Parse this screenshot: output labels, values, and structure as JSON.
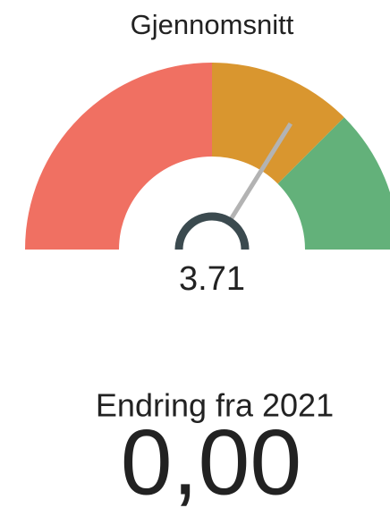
{
  "chart_data": {
    "type": "gauge",
    "title": "Gjennomsnitt",
    "value": 3.71,
    "range": [
      1,
      5
    ],
    "bands": [
      {
        "from": 1,
        "to": 3,
        "color": "#f07062"
      },
      {
        "from": 3,
        "to": 4,
        "color": "#d9962f"
      },
      {
        "from": 4,
        "to": 5,
        "color": "#63b17a"
      }
    ],
    "needle_color": "#b3b3b3",
    "hub_color": "#3b4a4f"
  },
  "kpi": {
    "label": "Endring fra 2021",
    "value": "0,00"
  }
}
